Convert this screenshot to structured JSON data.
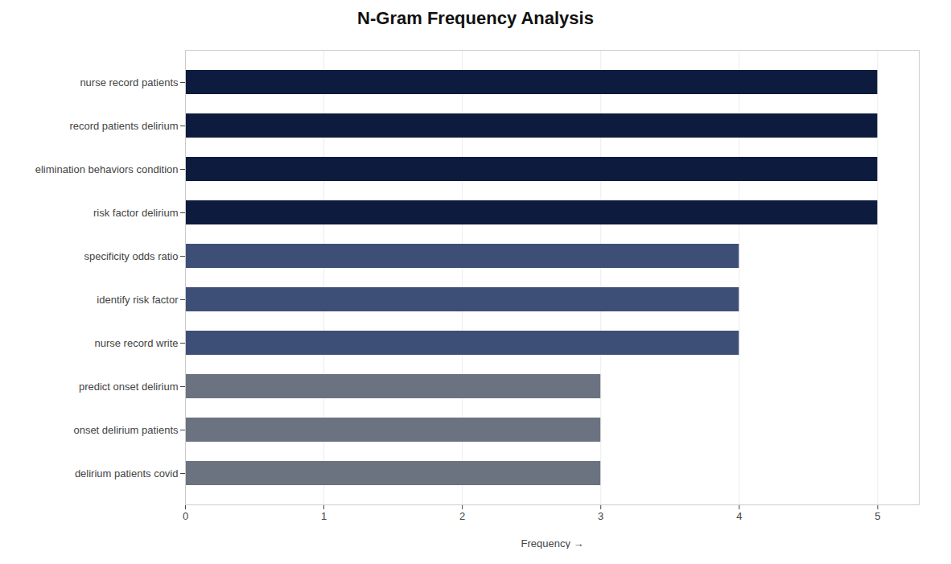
{
  "chart_data": {
    "type": "bar",
    "orientation": "horizontal",
    "title": "N-Gram Frequency Analysis",
    "categories": [
      "delirium patients covid",
      "onset delirium patients",
      "predict onset delirium",
      "nurse record write",
      "identify risk factor",
      "specificity odds ratio",
      "risk factor delirium",
      "elimination behaviors condition",
      "record patients delirium",
      "nurse record patients"
    ],
    "values": [
      3,
      3,
      3,
      4,
      4,
      4,
      5,
      5,
      5,
      5
    ],
    "colors": [
      "#6b7280",
      "#6b7280",
      "#6b7280",
      "#3d4f77",
      "#3d4f77",
      "#3d4f77",
      "#0d1b3e",
      "#0d1b3e",
      "#0d1b3e",
      "#0d1b3e"
    ],
    "xlabel": "Frequency",
    "xlim": [
      0,
      5.3
    ],
    "xticks": [
      0,
      1,
      2,
      3,
      4,
      5
    ],
    "grid": true
  }
}
